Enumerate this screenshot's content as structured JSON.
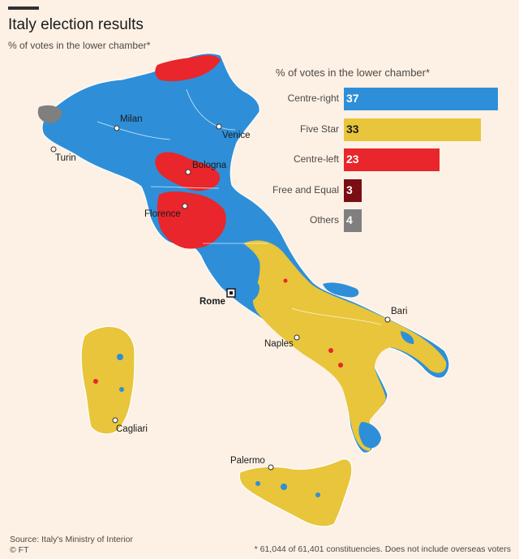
{
  "header": {
    "title": "Italy election results",
    "subtitle": "% of votes in the lower chamber*"
  },
  "chart_data": {
    "type": "bar",
    "title": "% of votes in the lower chamber*",
    "categories": [
      "Centre-right",
      "Five Star",
      "Centre-left",
      "Free and Equal",
      "Others"
    ],
    "values": [
      37,
      33,
      23,
      3,
      4
    ],
    "colors": [
      "#2e8fd8",
      "#e8c53a",
      "#e8262b",
      "#7a0e15",
      "#7f7f7f"
    ],
    "value_text_colors": [
      "#ffffff",
      "#1a1a1a",
      "#ffffff",
      "#ffffff",
      "#ffffff"
    ]
  },
  "map": {
    "party_colors": {
      "centre_right": "#2e8fd8",
      "five_star": "#e8c53a",
      "centre_left": "#e8262b",
      "others": "#7f7f7f"
    },
    "cities": [
      {
        "name": "Milan"
      },
      {
        "name": "Venice"
      },
      {
        "name": "Turin"
      },
      {
        "name": "Bologna"
      },
      {
        "name": "Florence"
      },
      {
        "name": "Rome"
      },
      {
        "name": "Bari"
      },
      {
        "name": "Naples"
      },
      {
        "name": "Cagliari"
      },
      {
        "name": "Palermo"
      }
    ]
  },
  "footer": {
    "source": "Source: Italy's Ministry of Interior",
    "credit": "© FT",
    "footnote": "* 61,044 of 61,401 constituencies. Does not include overseas voters"
  }
}
